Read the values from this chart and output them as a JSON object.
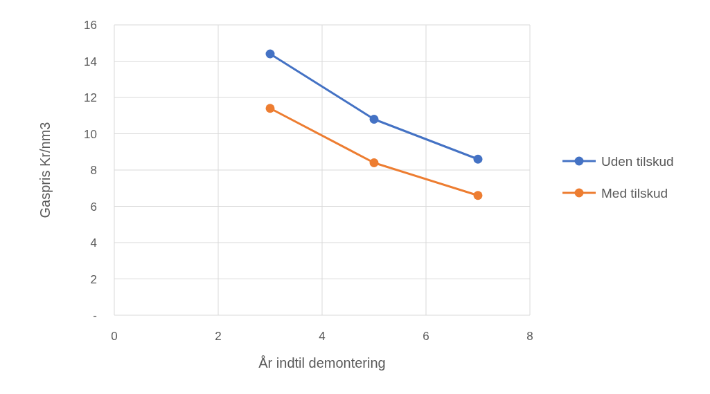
{
  "chart_data": {
    "type": "line",
    "xlabel": "År indtil demontering",
    "ylabel": "Gaspris Kr/nm3",
    "x": [
      3,
      5,
      7
    ],
    "series": [
      {
        "name": "Uden tilskud",
        "color": "#4472c4",
        "values": [
          14.4,
          10.8,
          8.6
        ]
      },
      {
        "name": "Med tilskud",
        "color": "#ed7d31",
        "values": [
          11.4,
          8.4,
          6.6
        ]
      }
    ],
    "xlim": [
      0,
      8
    ],
    "xticks": [
      0,
      2,
      4,
      6,
      8
    ],
    "ylim": [
      0,
      16
    ],
    "yticks": [
      {
        "value": 0,
        "label": "-"
      },
      2,
      4,
      6,
      8,
      10,
      12,
      14,
      16
    ],
    "grid": true,
    "legend": "right",
    "marker": "circle",
    "line_style": "solid"
  }
}
